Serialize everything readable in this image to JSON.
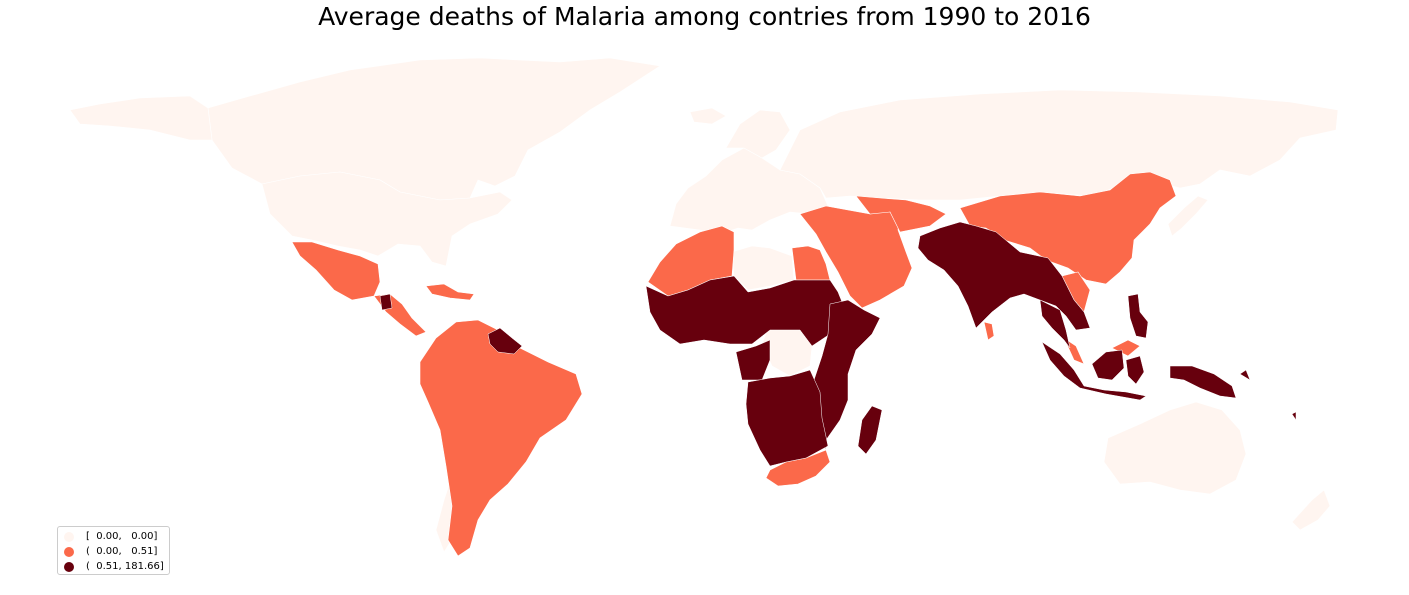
{
  "title": "Average deaths of Malaria among contries from 1990 to 2016",
  "colors": {
    "low": "#fff5f0",
    "mid": "#fb694a",
    "high": "#67000d"
  },
  "legend": {
    "items": [
      {
        "label": "[  0.00,   0.00]",
        "color": "#fff5f0"
      },
      {
        "label": "(  0.00,   0.51]",
        "color": "#fb694a"
      },
      {
        "label": "(  0.51, 181.66]",
        "color": "#67000d"
      }
    ]
  }
}
